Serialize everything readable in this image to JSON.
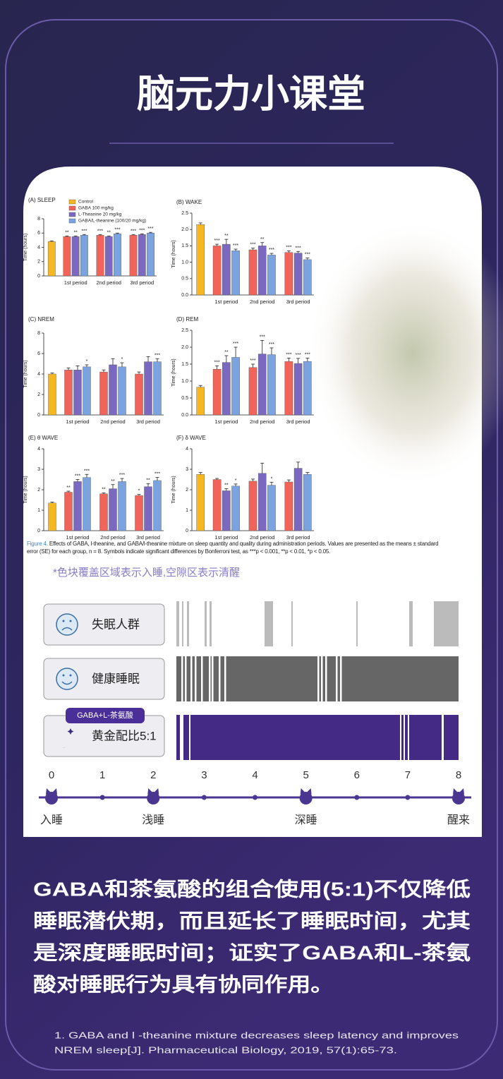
{
  "header": {
    "title": "脑元力小课堂"
  },
  "chart_data": [
    {
      "type": "bar",
      "title": "(A) SLEEP",
      "y_label": "Time (hours)",
      "categories": [
        null,
        "1st period",
        "2nd period",
        "3rd period"
      ],
      "series": [
        {
          "name": "Control",
          "color": "#f5b820",
          "values": [
            4.8,
            null,
            null,
            null
          ],
          "errors": [
            0.1,
            null,
            null,
            null
          ],
          "annotations": [
            null,
            null,
            null,
            null
          ]
        },
        {
          "name": "GABA 100 mg/kg",
          "color": "#f0645a",
          "values": [
            null,
            5.5,
            5.7,
            5.7
          ],
          "errors": [
            null,
            0.1,
            0.1,
            0.1
          ],
          "annotations": [
            null,
            "**",
            "***",
            "***"
          ]
        },
        {
          "name": "L-Theanine 20 mg/kg",
          "color": "#7b68c0",
          "values": [
            null,
            5.5,
            5.5,
            5.8
          ],
          "errors": [
            null,
            0.1,
            0.1,
            0.1
          ],
          "annotations": [
            null,
            "**",
            "**",
            "***"
          ]
        },
        {
          "name": "GABA/L-theanine (100/20 mg/kg)",
          "color": "#7ba3e0",
          "values": [
            null,
            5.7,
            5.9,
            6.0
          ],
          "errors": [
            null,
            0.1,
            0.1,
            0.1
          ],
          "annotations": [
            null,
            "***",
            "***",
            "***"
          ]
        }
      ],
      "ylim": [
        0,
        8
      ],
      "yticks": [
        0,
        2,
        4,
        6,
        8
      ]
    },
    {
      "type": "bar",
      "title": "(B) WAKE",
      "y_label": "Time (hours)",
      "categories": [
        null,
        "1st period",
        "2nd period",
        "3rd period"
      ],
      "series": [
        {
          "color": "#f5b820",
          "values": [
            2.15,
            null,
            null,
            null
          ],
          "errors": [
            0.05,
            null,
            null,
            null
          ],
          "annotations": [
            null,
            null,
            null,
            null
          ]
        },
        {
          "color": "#f0645a",
          "values": [
            null,
            1.5,
            1.38,
            1.3
          ],
          "errors": [
            null,
            0.05,
            0.05,
            0.05
          ],
          "annotations": [
            null,
            "***",
            "***",
            "***"
          ]
        },
        {
          "color": "#7b68c0",
          "values": [
            null,
            1.55,
            1.5,
            1.28
          ],
          "errors": [
            null,
            0.15,
            0.1,
            0.05
          ],
          "annotations": [
            null,
            "**",
            "**",
            "***"
          ]
        },
        {
          "color": "#7ba3e0",
          "values": [
            null,
            1.35,
            1.22,
            1.08
          ],
          "errors": [
            null,
            0.05,
            0.05,
            0.05
          ],
          "annotations": [
            null,
            "***",
            "***",
            "***"
          ]
        }
      ],
      "ylim": [
        0,
        2.5
      ],
      "yticks": [
        {
          "value": 0,
          "label": "0.0"
        },
        0.5,
        {
          "value": 1,
          "label": "1.0"
        },
        1.5,
        {
          "value": 2,
          "label": "2.0"
        },
        2.5
      ]
    },
    {
      "type": "bar",
      "title": "(C) NREM",
      "y_label": "Time (hours)",
      "categories": [
        null,
        "1st period",
        "2nd period",
        "3rd period"
      ],
      "series": [
        {
          "color": "#f5b820",
          "values": [
            4.0,
            null,
            null,
            null
          ],
          "errors": [
            0.1,
            null,
            null,
            null
          ],
          "annotations": [
            null,
            null,
            null,
            null
          ]
        },
        {
          "color": "#f0645a",
          "values": [
            null,
            4.4,
            4.2,
            4.0
          ],
          "errors": [
            null,
            0.2,
            0.2,
            0.2
          ],
          "annotations": [
            null,
            null,
            null,
            null
          ]
        },
        {
          "color": "#7b68c0",
          "values": [
            null,
            4.4,
            4.9,
            5.2
          ],
          "errors": [
            null,
            0.4,
            0.6,
            0.5
          ],
          "annotations": [
            null,
            null,
            null,
            null
          ]
        },
        {
          "color": "#7ba3e0",
          "values": [
            null,
            4.7,
            4.7,
            5.2
          ],
          "errors": [
            null,
            0.2,
            0.4,
            0.3
          ],
          "annotations": [
            null,
            "*",
            "*",
            "***"
          ]
        }
      ],
      "ylim": [
        0,
        8
      ],
      "yticks": [
        0,
        2,
        4,
        6,
        8
      ]
    },
    {
      "type": "bar",
      "title": "(D) REM",
      "y_label": "Time (hours)",
      "categories": [
        null,
        "1st period",
        "2nd period",
        "3rd period"
      ],
      "series": [
        {
          "color": "#f5b820",
          "values": [
            0.82,
            null,
            null,
            null
          ],
          "errors": [
            0.05,
            null,
            null,
            null
          ],
          "annotations": [
            null,
            null,
            null,
            null
          ]
        },
        {
          "color": "#f0645a",
          "values": [
            null,
            1.35,
            1.4,
            1.58
          ],
          "errors": [
            null,
            0.1,
            0.1,
            0.1
          ],
          "annotations": [
            null,
            "***",
            "***",
            "***"
          ]
        },
        {
          "color": "#7b68c0",
          "values": [
            null,
            1.55,
            1.8,
            1.52
          ],
          "errors": [
            null,
            0.2,
            0.4,
            0.15
          ],
          "annotations": [
            null,
            "**",
            "***",
            "***"
          ]
        },
        {
          "color": "#7ba3e0",
          "values": [
            null,
            1.7,
            1.78,
            1.58
          ],
          "errors": [
            null,
            0.3,
            0.2,
            0.1
          ],
          "annotations": [
            null,
            "***",
            "***",
            "***"
          ]
        }
      ],
      "ylim": [
        0,
        2.5
      ],
      "yticks": [
        {
          "value": 0,
          "label": "0.0"
        },
        0.5,
        {
          "value": 1,
          "label": "1.0"
        },
        1.5,
        {
          "value": 2,
          "label": "2.0"
        },
        2.5
      ]
    },
    {
      "type": "bar",
      "title": "(E) θ WAVE",
      "y_label": "Time (hours)",
      "categories": [
        null,
        "1st period",
        "2nd period",
        "3rd period"
      ],
      "series": [
        {
          "color": "#f5b820",
          "values": [
            1.35,
            null,
            null,
            null
          ],
          "errors": [
            0.05,
            null,
            null,
            null
          ],
          "annotations": [
            null,
            null,
            null,
            null
          ]
        },
        {
          "color": "#f0645a",
          "values": [
            null,
            1.88,
            1.8,
            1.72
          ],
          "errors": [
            null,
            0.05,
            0.05,
            0.05
          ],
          "annotations": [
            null,
            "**",
            "**",
            "*"
          ]
        },
        {
          "color": "#7b68c0",
          "values": [
            null,
            2.4,
            2.05,
            2.15
          ],
          "errors": [
            null,
            0.1,
            0.2,
            0.15
          ],
          "annotations": [
            null,
            "***",
            "**",
            "**"
          ]
        },
        {
          "color": "#7ba3e0",
          "values": [
            null,
            2.6,
            2.4,
            2.45
          ],
          "errors": [
            null,
            0.15,
            0.15,
            0.15
          ],
          "annotations": [
            null,
            "***",
            "***",
            "***"
          ]
        }
      ],
      "ylim": [
        0,
        4
      ],
      "yticks": [
        0,
        1,
        2,
        3,
        4
      ]
    },
    {
      "type": "bar",
      "title": "(F) δ WAVE",
      "y_label": "Time (hours)",
      "categories": [
        null,
        "1st period",
        "2nd period",
        "3rd period"
      ],
      "series": [
        {
          "color": "#f5b820",
          "values": [
            2.75,
            null,
            null,
            null
          ],
          "errors": [
            0.1,
            null,
            null,
            null
          ],
          "annotations": [
            null,
            null,
            null,
            null
          ]
        },
        {
          "color": "#f0645a",
          "values": [
            null,
            2.5,
            2.42,
            2.38
          ],
          "errors": [
            null,
            0.05,
            0.1,
            0.1
          ],
          "annotations": [
            null,
            null,
            null,
            null
          ]
        },
        {
          "color": "#7b68c0",
          "values": [
            null,
            1.95,
            2.8,
            3.05
          ],
          "errors": [
            null,
            0.1,
            0.5,
            0.3
          ],
          "annotations": [
            null,
            "**",
            null,
            null
          ]
        },
        {
          "color": "#7ba3e0",
          "values": [
            null,
            2.18,
            2.22,
            2.75
          ],
          "errors": [
            null,
            0.1,
            0.15,
            0.1
          ],
          "annotations": [
            null,
            "*",
            "*",
            null
          ]
        }
      ],
      "ylim": [
        0,
        4
      ],
      "yticks": [
        0,
        1,
        2,
        3,
        4
      ]
    }
  ],
  "caption": {
    "label": "Figure 4.",
    "text": "Effects of GABA, l-theanine, and GABA/l-theanine mixture on sleep quantity and quality during administration periods. Values are presented as the means ± standard error (SE) for each group, n = 8. Symbols indicate significant differences by Bonferroni test, as ***p < 0.001, **p < 0.01, *p < 0.05."
  },
  "note": "*色块覆盖区域表示入睡,空隙区表示清醒",
  "groups": [
    {
      "label": "失眠人群"
    },
    {
      "label": "健康睡眠"
    },
    {
      "label": "黄金配比5:1",
      "badge": "GABA+L-茶氨酸"
    }
  ],
  "timeline": {
    "xlim": [
      0,
      8
    ],
    "xticks": [
      0,
      1,
      2,
      3,
      4,
      5,
      6,
      7,
      8
    ],
    "stages": [
      {
        "label": "入睡",
        "at": 0
      },
      {
        "label": "浅睡",
        "at": 2
      },
      {
        "label": "深睡",
        "at": 5
      },
      {
        "label": "醒来",
        "at": 8
      }
    ]
  },
  "body": [
    "GABA和茶氨酸的组合使用(5:1)不仅降低",
    "睡眠潜伏期，而且延长了睡眠时间，尤其",
    "是深度睡眠时间；证实了GABA和L-茶氨",
    "酸对睡眠行为具有协同作用。"
  ],
  "reference": [
    "1. GABA and l -theanine mixture decreases sleep latency and improves",
    "NREM sleep[J].  Pharmaceutical Biology, 2019, 57(1):65-73."
  ]
}
